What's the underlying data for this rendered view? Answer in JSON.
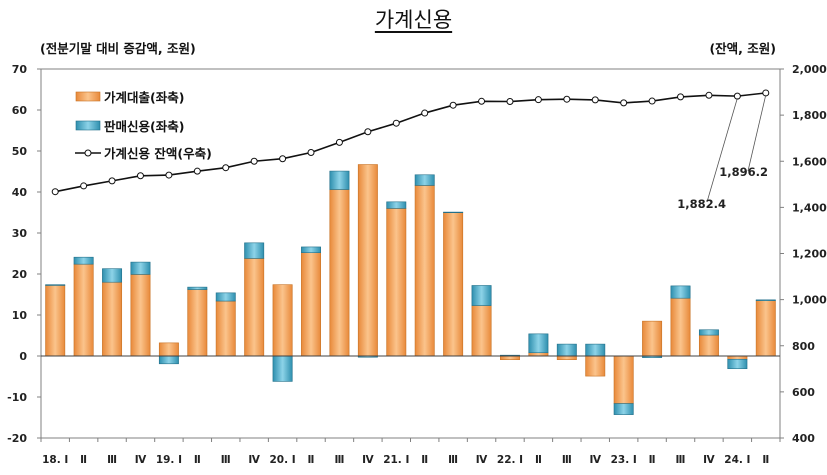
{
  "chart_data": {
    "type": "bar+line",
    "title": "가계신용",
    "left_axis_label": "(전분기말 대비 증감액, 조원)",
    "right_axis_label": "(잔액, 조원)",
    "left_ylim": [
      -20,
      70
    ],
    "left_ticks": [
      -20,
      -10,
      0,
      10,
      20,
      30,
      40,
      50,
      60,
      70
    ],
    "right_ylim": [
      400,
      2000
    ],
    "right_ticks": [
      "400",
      "600",
      "800",
      "1,000",
      "1,200",
      "1,400",
      "1,600",
      "1,800",
      "2,000"
    ],
    "right_tick_values": [
      400,
      600,
      800,
      1000,
      1200,
      1400,
      1600,
      1800,
      2000
    ],
    "categories": [
      "18. Ⅰ",
      "Ⅱ",
      "Ⅲ",
      "Ⅳ",
      "19. Ⅰ",
      "Ⅱ",
      "Ⅲ",
      "Ⅳ",
      "20. Ⅰ",
      "Ⅱ",
      "Ⅲ",
      "Ⅳ",
      "21. Ⅰ",
      "Ⅱ",
      "Ⅲ",
      "Ⅳ",
      "22. Ⅰ",
      "Ⅱ",
      "Ⅲ",
      "Ⅳ",
      "23. Ⅰ",
      "Ⅱ",
      "Ⅲ",
      "Ⅳ",
      "24. Ⅰ",
      "Ⅱ"
    ],
    "series": [
      {
        "name": "가계대출(좌축)",
        "type": "bar",
        "axis": "left",
        "color": "#F5A04A",
        "values": [
          17.2,
          22.4,
          18.0,
          19.9,
          3.2,
          16.2,
          13.4,
          23.8,
          17.4,
          25.2,
          40.6,
          46.7,
          36.0,
          41.6,
          35.0,
          12.3,
          -0.9,
          0.8,
          -0.9,
          -4.9,
          -11.6,
          8.5,
          14.1,
          5.1,
          -0.8,
          13.5
        ]
      },
      {
        "name": "판매신용(좌축)",
        "type": "bar",
        "axis": "left",
        "color": "#4BACC6",
        "values": [
          0.2,
          1.7,
          3.3,
          3.0,
          -1.9,
          0.6,
          2.0,
          3.8,
          -6.2,
          1.4,
          4.5,
          -0.3,
          1.6,
          2.6,
          0.1,
          4.9,
          0.2,
          4.6,
          2.9,
          2.9,
          -2.7,
          -0.4,
          3.0,
          1.3,
          -2.3,
          0.2
        ]
      },
      {
        "name": "가계신용 잔액(우축)",
        "type": "line",
        "axis": "right",
        "color": "#000000",
        "values": [
          1468,
          1493,
          1515,
          1537,
          1540,
          1557,
          1572,
          1600,
          1611,
          1638,
          1682,
          1728,
          1765,
          1809,
          1843,
          1860,
          1859,
          1867,
          1869,
          1866,
          1853,
          1861,
          1879,
          1886,
          1882.4,
          1896.2
        ]
      }
    ],
    "annotations": [
      {
        "text": "1,882.4",
        "category_index": 24
      },
      {
        "text": "1,896.2",
        "category_index": 25
      }
    ],
    "legend_position": "top-left"
  }
}
